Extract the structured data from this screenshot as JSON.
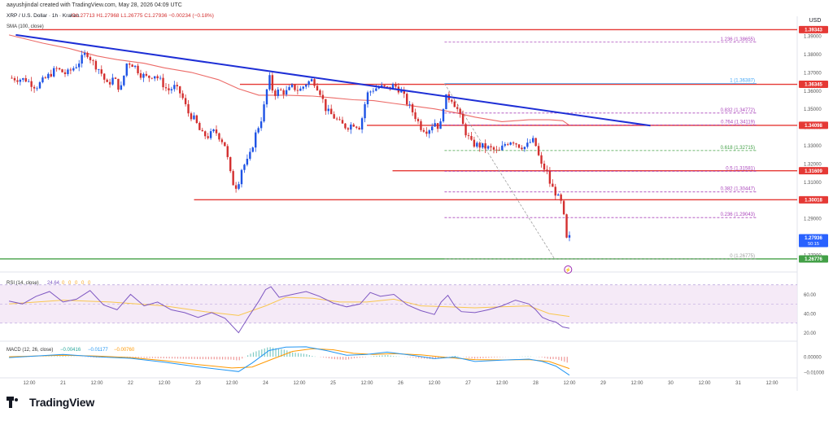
{
  "credit": "aayushjindal created with TradingView.com, May 28, 2026 04:09 UTC",
  "brand": "TradingView",
  "chart_data": {
    "type": "candlestick",
    "symbol_line": "XRP / U.S. Dollar · 1h · Kraken",
    "ohlc_line": "O1.27713  H1.27968  L1.26775  C1.27936  −0.00234 (−0.18%)",
    "sma_label": "SMA (100, close)",
    "currency": "USD",
    "price_range": [
      1.2615,
      1.3985
    ],
    "price_ticks": [
      "1.39000",
      "1.38000",
      "1.37000",
      "1.36000",
      "1.35000",
      "1.34000",
      "1.33000",
      "1.32000",
      "1.31000",
      "1.30000",
      "1.29000",
      "1.28000",
      "1.27000"
    ],
    "price_tags": [
      {
        "value": 1.3934,
        "label": "1.39343",
        "color": "#e53935"
      },
      {
        "value": 1.36345,
        "label": "1.36345",
        "color": "#e53935"
      },
      {
        "value": 1.34098,
        "label": "1.34098",
        "color": "#e53935"
      },
      {
        "value": 1.31609,
        "label": "1.31609",
        "color": "#e53935"
      },
      {
        "value": 1.30018,
        "label": "1.30018",
        "color": "#e53935"
      },
      {
        "value": 1.27936,
        "label": "1.27936",
        "color": "#2962ff",
        "sub": "50:15"
      },
      {
        "value": 1.26776,
        "label": "1.26776",
        "color": "#43a047"
      }
    ],
    "horizontal_lines": [
      {
        "value": 1.3934,
        "x_from": 0.0,
        "color": "#e53935"
      },
      {
        "value": 1.36345,
        "x_from": 3.12,
        "color": "#e53935"
      },
      {
        "value": 1.34098,
        "x_from": 5.0,
        "color": "#e53935"
      },
      {
        "value": 1.31609,
        "x_from": 5.38,
        "color": "#e53935"
      },
      {
        "value": 1.30018,
        "x_from": 2.44,
        "color": "#e53935"
      },
      {
        "value": 1.26776,
        "x_from": -0.5,
        "color": "#43a047"
      }
    ],
    "fib_levels": [
      {
        "ratio": "1.236",
        "value": 1.38655,
        "color": "#ab47bc",
        "dashed": true
      },
      {
        "ratio": "1",
        "value": 1.36387,
        "color": "#42a5f5",
        "dashed": false
      },
      {
        "ratio": "0.832",
        "value": 1.34772,
        "color": "#ab47bc",
        "dashed": true
      },
      {
        "ratio": "0.764",
        "value": 1.34119,
        "color": "#ab47bc",
        "dashed": true
      },
      {
        "ratio": "0.618",
        "value": 1.32715,
        "color": "#43a047",
        "dashed": true
      },
      {
        "ratio": "0.5",
        "value": 1.31581,
        "color": "#ab47bc",
        "dashed": true
      },
      {
        "ratio": "0.382",
        "value": 1.30447,
        "color": "#ab47bc",
        "dashed": true
      },
      {
        "ratio": "0.236",
        "value": 1.29043,
        "color": "#ab47bc",
        "dashed": true
      },
      {
        "ratio": "0",
        "value": 1.26775,
        "color": "#9e9e9e",
        "dashed": true
      }
    ],
    "trendline": {
      "start": [
        -0.2,
        1.3905
      ],
      "end": [
        9.2,
        1.3408
      ],
      "color": "#1e2fd6"
    },
    "fib_anchor_line": {
      "start": [
        6.15,
        1.36387
      ],
      "end": [
        7.78,
        1.26775
      ]
    },
    "x_ticks": [
      {
        "pos": 0.0,
        "label": "12:00"
      },
      {
        "pos": 0.5,
        "label": "21"
      },
      {
        "pos": 1.0,
        "label": "12:00"
      },
      {
        "pos": 1.5,
        "label": "22"
      },
      {
        "pos": 2.0,
        "label": "12:00"
      },
      {
        "pos": 2.5,
        "label": "23"
      },
      {
        "pos": 3.0,
        "label": "12:00"
      },
      {
        "pos": 3.5,
        "label": "24"
      },
      {
        "pos": 4.0,
        "label": "12:00"
      },
      {
        "pos": 4.5,
        "label": "25"
      },
      {
        "pos": 5.0,
        "label": "12:00"
      },
      {
        "pos": 5.5,
        "label": "26"
      },
      {
        "pos": 6.0,
        "label": "12:00"
      },
      {
        "pos": 6.5,
        "label": "27"
      },
      {
        "pos": 7.0,
        "label": "12:00"
      },
      {
        "pos": 7.5,
        "label": "28"
      },
      {
        "pos": 8.0,
        "label": "12:00"
      },
      {
        "pos": 8.5,
        "label": "29"
      },
      {
        "pos": 9.0,
        "label": "12:00"
      },
      {
        "pos": 9.5,
        "label": "30"
      },
      {
        "pos": 10.0,
        "label": "12:00"
      },
      {
        "pos": 10.5,
        "label": "31"
      },
      {
        "pos": 11.0,
        "label": "12:00"
      }
    ],
    "price_path": [
      [
        -0.3,
        1.367
      ],
      [
        -0.05,
        1.366
      ],
      [
        0.1,
        1.362
      ],
      [
        0.25,
        1.367
      ],
      [
        0.4,
        1.372
      ],
      [
        0.55,
        1.369
      ],
      [
        0.7,
        1.374
      ],
      [
        0.85,
        1.381
      ],
      [
        0.95,
        1.375
      ],
      [
        1.05,
        1.371
      ],
      [
        1.15,
        1.363
      ],
      [
        1.25,
        1.367
      ],
      [
        1.35,
        1.36
      ],
      [
        1.45,
        1.376
      ],
      [
        1.55,
        1.374
      ],
      [
        1.65,
        1.369
      ],
      [
        1.75,
        1.367
      ],
      [
        1.85,
        1.369
      ],
      [
        1.95,
        1.365
      ],
      [
        2.05,
        1.36
      ],
      [
        2.15,
        1.362
      ],
      [
        2.25,
        1.358
      ],
      [
        2.35,
        1.348
      ],
      [
        2.45,
        1.344
      ],
      [
        2.55,
        1.336
      ],
      [
        2.65,
        1.335
      ],
      [
        2.75,
        1.338
      ],
      [
        2.85,
        1.333
      ],
      [
        2.9,
        1.33
      ],
      [
        3.0,
        1.31
      ],
      [
        3.08,
        1.307
      ],
      [
        3.15,
        1.318
      ],
      [
        3.25,
        1.322
      ],
      [
        3.35,
        1.336
      ],
      [
        3.45,
        1.346
      ],
      [
        3.5,
        1.356
      ],
      [
        3.55,
        1.368
      ],
      [
        3.62,
        1.358
      ],
      [
        3.7,
        1.36
      ],
      [
        3.8,
        1.359
      ],
      [
        3.9,
        1.362
      ],
      [
        4.0,
        1.36
      ],
      [
        4.1,
        1.364
      ],
      [
        4.2,
        1.366
      ],
      [
        4.3,
        1.36
      ],
      [
        4.4,
        1.349
      ],
      [
        4.5,
        1.346
      ],
      [
        4.6,
        1.342
      ],
      [
        4.7,
        1.34
      ],
      [
        4.8,
        1.342
      ],
      [
        4.9,
        1.34
      ],
      [
        5.0,
        1.358
      ],
      [
        5.1,
        1.361
      ],
      [
        5.2,
        1.362
      ],
      [
        5.3,
        1.361
      ],
      [
        5.4,
        1.363
      ],
      [
        5.5,
        1.36
      ],
      [
        5.6,
        1.353
      ],
      [
        5.7,
        1.347
      ],
      [
        5.8,
        1.34
      ],
      [
        5.9,
        1.338
      ],
      [
        6.0,
        1.343
      ],
      [
        6.08,
        1.339
      ],
      [
        6.15,
        1.356
      ],
      [
        6.25,
        1.356
      ],
      [
        6.35,
        1.349
      ],
      [
        6.45,
        1.338
      ],
      [
        6.55,
        1.331
      ],
      [
        6.65,
        1.33
      ],
      [
        6.75,
        1.329
      ],
      [
        6.85,
        1.328
      ],
      [
        6.95,
        1.326
      ],
      [
        7.05,
        1.331
      ],
      [
        7.15,
        1.333
      ],
      [
        7.25,
        1.33
      ],
      [
        7.35,
        1.329
      ],
      [
        7.45,
        1.333
      ],
      [
        7.5,
        1.33
      ],
      [
        7.58,
        1.319
      ],
      [
        7.66,
        1.316
      ],
      [
        7.72,
        1.308
      ],
      [
        7.78,
        1.305
      ],
      [
        7.85,
        1.3
      ],
      [
        7.9,
        1.297
      ],
      [
        7.95,
        1.278
      ],
      [
        8.0,
        1.2794
      ]
    ],
    "sma_path": [
      [
        -0.3,
        1.3905
      ],
      [
        0.2,
        1.386
      ],
      [
        0.6,
        1.383
      ],
      [
        1.0,
        1.379
      ],
      [
        1.3,
        1.377
      ],
      [
        1.7,
        1.375
      ],
      [
        2.0,
        1.3725
      ],
      [
        2.4,
        1.37
      ],
      [
        2.8,
        1.366
      ],
      [
        3.1,
        1.361
      ],
      [
        3.4,
        1.3575
      ],
      [
        3.8,
        1.3575
      ],
      [
        4.2,
        1.357
      ],
      [
        4.5,
        1.356
      ],
      [
        4.8,
        1.355
      ],
      [
        5.1,
        1.3545
      ],
      [
        5.4,
        1.353
      ],
      [
        5.7,
        1.3515
      ],
      [
        6.0,
        1.35
      ],
      [
        6.3,
        1.348
      ],
      [
        6.6,
        1.3455
      ],
      [
        7.0,
        1.343
      ],
      [
        7.4,
        1.344
      ],
      [
        7.7,
        1.344
      ],
      [
        7.9,
        1.3435
      ],
      [
        8.0,
        1.341
      ]
    ],
    "rsi": {
      "label": "RSI (14, close)",
      "value": "24.64",
      "na": [
        "0",
        "0",
        "0",
        "0",
        "0"
      ],
      "range": [
        12,
        80
      ],
      "ticks": [
        "60.00",
        "40.00",
        "20.00"
      ],
      "band": [
        30,
        70
      ],
      "path": [
        [
          -0.3,
          53
        ],
        [
          -0.1,
          50
        ],
        [
          0.1,
          58
        ],
        [
          0.3,
          63
        ],
        [
          0.5,
          52
        ],
        [
          0.7,
          55
        ],
        [
          0.9,
          64
        ],
        [
          1.1,
          49
        ],
        [
          1.3,
          44
        ],
        [
          1.5,
          60
        ],
        [
          1.7,
          48
        ],
        [
          1.9,
          52
        ],
        [
          2.1,
          44
        ],
        [
          2.3,
          41
        ],
        [
          2.5,
          36
        ],
        [
          2.7,
          41
        ],
        [
          2.9,
          35
        ],
        [
          3.1,
          20
        ],
        [
          3.25,
          37
        ],
        [
          3.4,
          53
        ],
        [
          3.5,
          65
        ],
        [
          3.58,
          68
        ],
        [
          3.7,
          57
        ],
        [
          3.9,
          60
        ],
        [
          4.1,
          63
        ],
        [
          4.3,
          58
        ],
        [
          4.5,
          51
        ],
        [
          4.7,
          47
        ],
        [
          4.9,
          50
        ],
        [
          5.05,
          62
        ],
        [
          5.2,
          58
        ],
        [
          5.4,
          60
        ],
        [
          5.6,
          49
        ],
        [
          5.8,
          43
        ],
        [
          6.0,
          39
        ],
        [
          6.1,
          52
        ],
        [
          6.2,
          59
        ],
        [
          6.3,
          48
        ],
        [
          6.4,
          42
        ],
        [
          6.6,
          41
        ],
        [
          6.8,
          44
        ],
        [
          7.0,
          48
        ],
        [
          7.2,
          54
        ],
        [
          7.4,
          50
        ],
        [
          7.5,
          44
        ],
        [
          7.6,
          36
        ],
        [
          7.7,
          33
        ],
        [
          7.8,
          31
        ],
        [
          7.9,
          26
        ],
        [
          8.0,
          24.64
        ]
      ],
      "signal_path": [
        [
          -0.3,
          50
        ],
        [
          0.5,
          54
        ],
        [
          1.2,
          52
        ],
        [
          2.0,
          48
        ],
        [
          2.6,
          42
        ],
        [
          3.1,
          38
        ],
        [
          3.5,
          48
        ],
        [
          3.8,
          57
        ],
        [
          4.2,
          56
        ],
        [
          4.6,
          52
        ],
        [
          5.0,
          52
        ],
        [
          5.4,
          55
        ],
        [
          5.8,
          48
        ],
        [
          6.2,
          47
        ],
        [
          6.6,
          46
        ],
        [
          7.0,
          47
        ],
        [
          7.4,
          48
        ],
        [
          7.7,
          40
        ],
        [
          8.0,
          37
        ]
      ]
    },
    "macd": {
      "label": "MACD (12, 26, close)",
      "values": [
        "−0.00416",
        "−0.01177",
        "−0.00760"
      ],
      "range": [
        -0.0125,
        0.0095
      ],
      "ticks": [
        "0.00000",
        "−0.01000"
      ],
      "macd_path": [
        [
          -0.3,
          -0.0005
        ],
        [
          0.5,
          0.0015
        ],
        [
          1.0,
          0.0
        ],
        [
          1.5,
          -0.001
        ],
        [
          2.0,
          -0.0035
        ],
        [
          2.5,
          -0.0065
        ],
        [
          2.9,
          -0.0085
        ],
        [
          3.1,
          -0.0095
        ],
        [
          3.3,
          -0.004
        ],
        [
          3.55,
          0.004
        ],
        [
          3.8,
          0.0062
        ],
        [
          4.1,
          0.0064
        ],
        [
          4.4,
          0.004
        ],
        [
          4.7,
          0.001
        ],
        [
          5.0,
          0.0015
        ],
        [
          5.3,
          0.003
        ],
        [
          5.7,
          0.0008
        ],
        [
          6.0,
          -0.0012
        ],
        [
          6.3,
          -0.0002
        ],
        [
          6.6,
          -0.003
        ],
        [
          7.0,
          -0.0022
        ],
        [
          7.4,
          -0.0015
        ],
        [
          7.6,
          -0.003
        ],
        [
          7.8,
          -0.006
        ],
        [
          8.0,
          -0.0118
        ]
      ],
      "signal_path": [
        [
          -0.3,
          0.0
        ],
        [
          0.5,
          0.001
        ],
        [
          1.0,
          0.0005
        ],
        [
          1.5,
          -0.0005
        ],
        [
          2.0,
          -0.0025
        ],
        [
          2.5,
          -0.005
        ],
        [
          3.0,
          -0.0072
        ],
        [
          3.3,
          -0.0066
        ],
        [
          3.6,
          -0.0015
        ],
        [
          3.9,
          0.0035
        ],
        [
          4.2,
          0.0052
        ],
        [
          4.5,
          0.0045
        ],
        [
          4.8,
          0.0022
        ],
        [
          5.1,
          0.0015
        ],
        [
          5.4,
          0.002
        ],
        [
          5.8,
          0.0012
        ],
        [
          6.2,
          -0.0005
        ],
        [
          6.6,
          -0.0018
        ],
        [
          7.0,
          -0.002
        ],
        [
          7.4,
          -0.0018
        ],
        [
          7.7,
          -0.003
        ],
        [
          8.0,
          -0.0076
        ]
      ]
    }
  }
}
